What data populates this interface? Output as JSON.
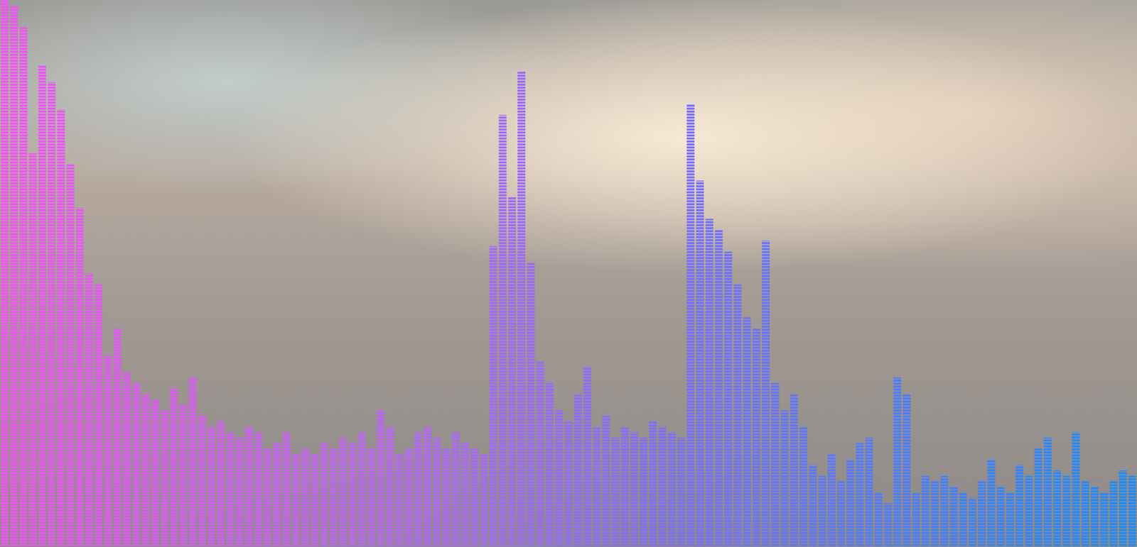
{
  "chart_data": {
    "type": "bar",
    "values": [
      100,
      99,
      95,
      72,
      88,
      85,
      80,
      70,
      62,
      50,
      48,
      35,
      40,
      32,
      30,
      28,
      27,
      25,
      29,
      26,
      31,
      24,
      22,
      23,
      21,
      20,
      22,
      21,
      18,
      19,
      21,
      17,
      18,
      17,
      19,
      18,
      20,
      19,
      21,
      18,
      25,
      22,
      17,
      18,
      21,
      22,
      20,
      18,
      21,
      19,
      18,
      17,
      55,
      79,
      64,
      87,
      52,
      34,
      30,
      25,
      23,
      28,
      33,
      22,
      24,
      20,
      22,
      21,
      20,
      23,
      22,
      21,
      20,
      81,
      67,
      60,
      58,
      54,
      48,
      42,
      40,
      56,
      30,
      25,
      28,
      22,
      15,
      13,
      17,
      12,
      16,
      19,
      20,
      10,
      8,
      31,
      28,
      10,
      13,
      12,
      13,
      11,
      10,
      9,
      12,
      16,
      11,
      10,
      15,
      13,
      18,
      20,
      14,
      13,
      21,
      12,
      11,
      10,
      12,
      14,
      13
    ],
    "ylim": [
      0,
      100
    ],
    "tick_labels": false,
    "grid": false
  }
}
